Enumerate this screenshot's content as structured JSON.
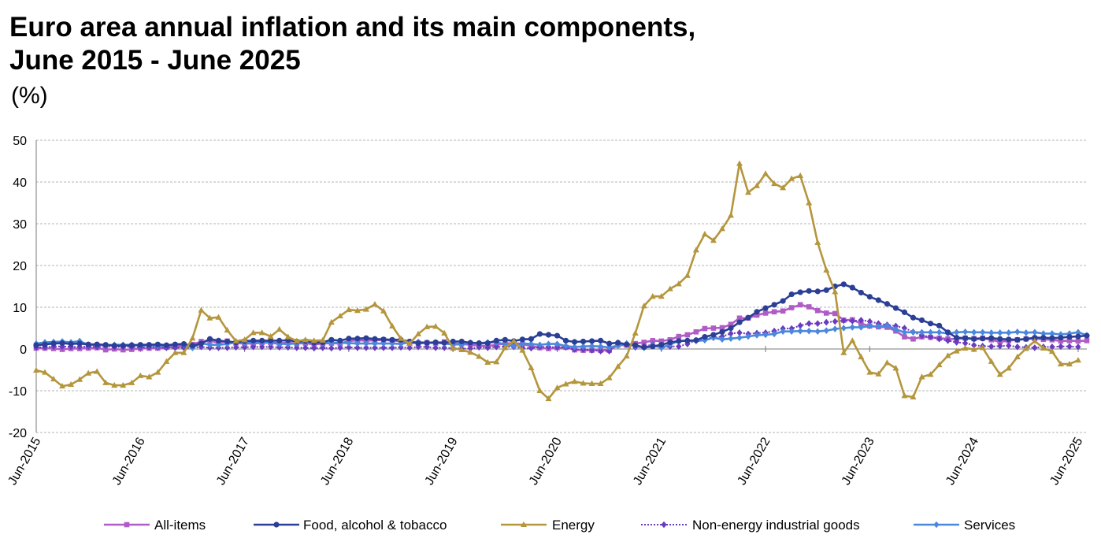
{
  "title_line1": "Euro area annual inflation and its main components,",
  "title_line2": "June 2015 - June 2025",
  "unit": "(%)",
  "chart_data": {
    "type": "line",
    "title": "Euro area annual inflation and its main components, June 2015 - June 2025",
    "ylabel": "(%)",
    "ylim": [
      -20,
      50
    ],
    "yticks": [
      -20,
      -10,
      0,
      10,
      20,
      30,
      40,
      50
    ],
    "grid": true,
    "legend_position": "bottom",
    "x_tick_labels": [
      "Jun-2015",
      "Jun-2016",
      "Jun-2017",
      "Jun-2018",
      "Jun-2019",
      "Jun-2020",
      "Jun-2021",
      "Jun-2022",
      "Jun-2023",
      "Jun-2024",
      "Jun-2025"
    ],
    "x_start": "Jun-2015",
    "x_end": "Jun-2025",
    "frequency": "monthly",
    "series": [
      {
        "name": "All-items",
        "color": "#b05cc6",
        "marker": "square",
        "dash": false,
        "values": [
          0.2,
          0.2,
          0.1,
          -0.1,
          0.1,
          0.1,
          0.2,
          0.3,
          -0.2,
          0.0,
          -0.2,
          -0.1,
          0.1,
          0.2,
          0.2,
          0.4,
          0.5,
          0.6,
          1.1,
          1.8,
          2.0,
          1.5,
          1.9,
          1.4,
          1.3,
          1.3,
          1.5,
          1.5,
          1.4,
          1.5,
          1.3,
          1.4,
          1.1,
          1.3,
          1.4,
          1.3,
          1.9,
          2.1,
          2.0,
          2.1,
          2.2,
          2.0,
          1.9,
          1.5,
          1.4,
          1.5,
          1.4,
          1.7,
          1.3,
          1.2,
          1.0,
          0.8,
          0.7,
          1.0,
          1.3,
          1.4,
          1.2,
          0.7,
          0.3,
          0.1,
          0.3,
          0.4,
          -0.2,
          -0.3,
          -0.3,
          -0.3,
          -0.3,
          0.9,
          0.9,
          1.3,
          1.6,
          2.0,
          1.9,
          2.2,
          3.0,
          3.4,
          4.1,
          4.9,
          5.0,
          5.1,
          5.9,
          7.4,
          7.4,
          8.1,
          8.6,
          8.9,
          9.1,
          9.9,
          10.6,
          10.1,
          9.2,
          8.6,
          8.5,
          6.9,
          7.0,
          6.1,
          5.5,
          5.3,
          5.2,
          4.3,
          2.9,
          2.4,
          2.9,
          2.8,
          2.6,
          2.4,
          2.4,
          2.6,
          2.5,
          2.6,
          2.2,
          1.7,
          2.0,
          2.2,
          2.4,
          2.5,
          2.3,
          2.2,
          1.9,
          2.0,
          1.9,
          2.0
        ]
      },
      {
        "name": "Food, alcohol & tobacco",
        "color": "#2a3f95",
        "marker": "circle",
        "dash": false,
        "values": [
          0.9,
          1.1,
          1.3,
          1.4,
          1.2,
          1.3,
          1.1,
          1.1,
          1.0,
          0.8,
          0.8,
          0.9,
          1.0,
          1.0,
          1.1,
          0.9,
          1.1,
          1.2,
          0.8,
          1.3,
          2.4,
          2.0,
          1.8,
          1.6,
          1.9,
          2.0,
          2.0,
          2.0,
          2.0,
          2.1,
          1.8,
          1.9,
          1.5,
          1.6,
          2.2,
          2.0,
          2.5,
          2.5,
          2.6,
          2.4,
          2.3,
          2.2,
          2.2,
          1.8,
          1.4,
          1.5,
          1.6,
          1.5,
          1.8,
          1.8,
          1.5,
          1.4,
          1.4,
          2.0,
          2.2,
          1.9,
          2.3,
          2.4,
          3.6,
          3.4,
          3.2,
          2.0,
          1.7,
          1.8,
          1.9,
          2.0,
          1.3,
          1.5,
          1.1,
          0.9,
          0.4,
          0.6,
          1.0,
          1.6,
          1.9,
          2.0,
          2.1,
          2.9,
          3.4,
          4.1,
          5.0,
          6.4,
          7.5,
          8.9,
          9.8,
          10.6,
          11.5,
          13.1,
          13.6,
          13.9,
          13.8,
          14.1,
          15.0,
          15.5,
          14.7,
          13.5,
          12.5,
          11.7,
          10.8,
          9.8,
          8.8,
          7.5,
          6.9,
          6.1,
          5.6,
          4.0,
          2.7,
          2.6,
          2.4,
          2.5,
          2.6,
          2.4,
          2.3,
          2.2,
          2.4,
          2.7,
          2.7,
          2.6,
          2.7,
          2.9,
          3.0,
          3.2
        ]
      },
      {
        "name": "Energy",
        "color": "#b4963d",
        "marker": "triangle",
        "dash": false,
        "values": [
          -5.1,
          -5.6,
          -7.2,
          -8.9,
          -8.5,
          -7.3,
          -5.8,
          -5.4,
          -8.1,
          -8.7,
          -8.7,
          -8.1,
          -6.4,
          -6.7,
          -5.6,
          -3.0,
          -0.9,
          -0.9,
          2.6,
          9.3,
          7.4,
          7.6,
          4.5,
          1.9,
          2.2,
          3.9,
          3.9,
          3.0,
          4.7,
          2.9,
          1.9,
          2.2,
          2.0,
          2.1,
          6.4,
          7.9,
          9.4,
          9.2,
          9.5,
          10.7,
          9.1,
          5.5,
          2.5,
          1.3,
          3.6,
          5.3,
          5.4,
          3.8,
          0.2,
          -0.2,
          -0.8,
          -1.8,
          -3.2,
          -3.1,
          0.3,
          1.9,
          -0.3,
          -4.5,
          -10.0,
          -11.9,
          -9.3,
          -8.4,
          -7.8,
          -8.2,
          -8.3,
          -8.3,
          -6.9,
          -4.2,
          -1.7,
          3.8,
          10.3,
          12.6,
          12.6,
          14.4,
          15.6,
          17.6,
          23.7,
          27.5,
          26.0,
          28.8,
          32.0,
          44.4,
          37.5,
          39.1,
          42.0,
          39.6,
          38.6,
          40.8,
          41.5,
          35.0,
          25.5,
          18.9,
          13.7,
          -0.9,
          2.0,
          -1.9,
          -5.6,
          -6.0,
          -3.3,
          -4.6,
          -11.2,
          -11.5,
          -6.7,
          -6.1,
          -3.8,
          -1.6,
          -0.5,
          0.2,
          -0.1,
          0.3,
          -3.0,
          -6.1,
          -4.6,
          -1.9,
          0.1,
          1.9,
          0.2,
          -0.6,
          -3.6,
          -3.6,
          -2.7
        ]
      },
      {
        "name": "Non-energy industrial goods",
        "color": "#6a3bc1",
        "marker": "diamond",
        "dash": true,
        "values": [
          0.4,
          0.4,
          0.6,
          0.6,
          0.5,
          0.5,
          0.6,
          0.5,
          0.7,
          0.5,
          0.5,
          0.5,
          0.4,
          0.4,
          0.4,
          0.3,
          0.3,
          0.3,
          0.3,
          0.5,
          0.3,
          0.3,
          0.3,
          0.4,
          0.4,
          0.5,
          0.5,
          0.5,
          0.4,
          0.4,
          0.3,
          0.3,
          0.2,
          0.3,
          0.2,
          0.3,
          0.4,
          0.3,
          0.3,
          0.3,
          0.3,
          0.3,
          0.4,
          0.3,
          0.5,
          0.5,
          0.3,
          0.3,
          0.2,
          0.1,
          0.1,
          0.4,
          0.3,
          0.5,
          0.5,
          0.5,
          0.2,
          0.2,
          0.5,
          0.5,
          0.4,
          0.4,
          -0.1,
          -0.1,
          -0.3,
          -0.5,
          -0.5,
          1.5,
          1.3,
          0.4,
          0.7,
          1.0,
          0.3,
          0.6,
          0.6,
          1.2,
          2.1,
          2.6,
          2.7,
          3.0,
          3.7,
          3.9,
          3.6,
          3.8,
          3.9,
          4.3,
          4.9,
          4.9,
          5.6,
          6.1,
          6.1,
          6.4,
          6.6,
          6.8,
          6.7,
          6.9,
          6.6,
          6.1,
          5.8,
          5.5,
          5.0,
          4.1,
          3.2,
          2.9,
          2.4,
          2.0,
          1.6,
          1.4,
          0.9,
          0.7,
          0.6,
          0.7,
          0.8,
          0.5,
          0.4,
          0.3,
          0.5,
          0.5,
          0.6,
          0.6,
          0.5
        ]
      },
      {
        "name": "Services",
        "color": "#4b88dc",
        "marker": "diamond",
        "dash": false,
        "values": [
          1.3,
          1.6,
          1.7,
          1.8,
          1.6,
          1.9,
          1.0,
          1.0,
          0.9,
          1.0,
          1.0,
          1.0,
          0.8,
          0.9,
          0.7,
          0.8,
          1.0,
          1.0,
          0.3,
          1.4,
          1.0,
          1.0,
          1.2,
          1.6,
          1.4,
          1.6,
          1.6,
          1.5,
          1.2,
          1.2,
          1.3,
          1.6,
          1.5,
          1.4,
          1.5,
          1.5,
          1.4,
          1.3,
          1.3,
          1.3,
          1.3,
          1.3,
          1.2,
          1.6,
          1.7,
          1.5,
          1.5,
          1.3,
          1.1,
          1.1,
          1.5,
          1.4,
          1.6,
          1.6,
          1.1,
          0.7,
          1.3,
          1.2,
          1.0,
          1.2,
          1.2,
          0.7,
          0.5,
          0.6,
          0.7,
          0.6,
          0.4,
          0.8,
          1.3,
          0.7,
          0.3,
          0.9,
          0.3,
          1.1,
          1.9,
          2.0,
          1.9,
          2.1,
          2.7,
          2.3,
          2.5,
          2.7,
          3.0,
          3.3,
          3.4,
          3.6,
          4.2,
          4.2,
          4.3,
          4.3,
          4.2,
          4.4,
          4.8,
          5.0,
          5.2,
          5.2,
          5.5,
          5.4,
          5.6,
          4.7,
          4.0,
          4.0,
          4.0,
          4.0,
          4.0,
          3.7,
          4.0,
          4.1,
          4.0,
          4.0,
          3.9,
          3.9,
          3.9,
          4.1,
          3.9,
          4.0,
          3.7,
          3.7,
          3.5,
          3.7,
          4.0,
          3.3
        ]
      }
    ]
  }
}
